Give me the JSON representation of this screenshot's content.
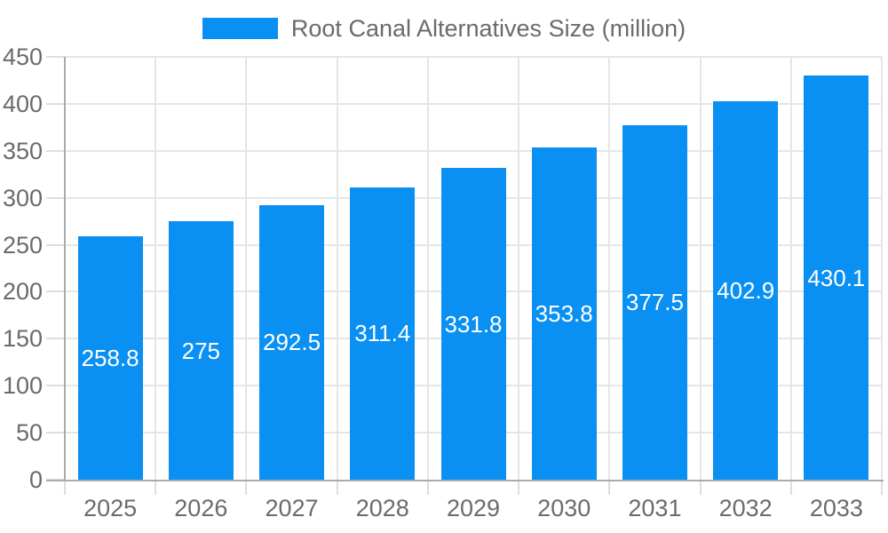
{
  "legend": {
    "label": "Root Canal Alternatives Size (million)"
  },
  "chart_data": {
    "type": "bar",
    "title": "Root Canal Alternatives Size (million)",
    "categories": [
      "2025",
      "2026",
      "2027",
      "2028",
      "2029",
      "2030",
      "2031",
      "2032",
      "2033"
    ],
    "series": [
      {
        "name": "Root Canal Alternatives Size (million)",
        "values": [
          258.8,
          275,
          292.5,
          311.4,
          331.8,
          353.8,
          377.5,
          402.9,
          430.1
        ]
      }
    ],
    "value_labels": [
      "258.8",
      "275",
      "292.5",
      "311.4",
      "331.8",
      "353.8",
      "377.5",
      "402.9",
      "430.1"
    ],
    "xlabel": "",
    "ylabel": "",
    "ylim": [
      0,
      450
    ],
    "y_ticks": [
      0,
      50,
      100,
      150,
      200,
      250,
      300,
      350,
      400,
      450
    ],
    "grid": true,
    "legend_position": "top-center",
    "value_label_position": "inside-center",
    "colors": {
      "bar": "#0a90f2",
      "axis_line": "#ababab",
      "gridline": "#e6e6e6",
      "tick": "#dedede",
      "axis_label_text": "#6b6b6b",
      "legend_text": "#6b6b6b",
      "value_label_text": "#ffffff",
      "background": "#ffffff"
    }
  }
}
